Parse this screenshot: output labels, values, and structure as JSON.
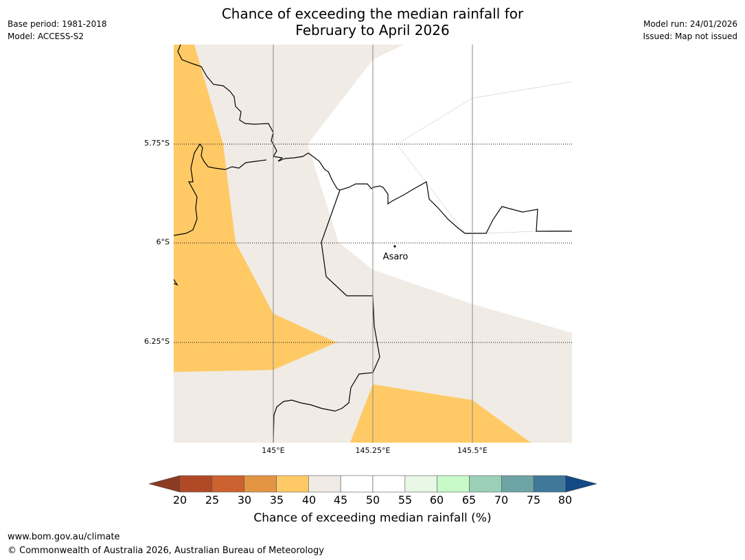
{
  "title": {
    "line1": "Chance of exceeding the median rainfall for",
    "line2": "February to April 2026"
  },
  "meta_left": {
    "base_period": "Base period: 1981-2018",
    "model": "Model: ACCESS-S2"
  },
  "meta_right": {
    "model_run": "Model run: 24/01/2026",
    "issued": "Issued: Map not issued"
  },
  "map": {
    "lat_labels": [
      "5.75°S",
      "6°S",
      "6.25°S"
    ],
    "lon_labels": [
      "145°E",
      "145.25°E",
      "145.5°E"
    ],
    "place": "Asaro",
    "colors": {
      "below_35_40": "#ffca66",
      "band_40_45": "#f0ebe5",
      "band_45_55": "#ffffff",
      "border": "#000000",
      "gridline": "#888888"
    }
  },
  "colorbar": {
    "ticks": [
      "20",
      "25",
      "30",
      "35",
      "40",
      "45",
      "50",
      "55",
      "60",
      "65",
      "70",
      "75",
      "80"
    ],
    "label": "Chance of exceeding median rainfall (%)",
    "low_extend_color": "#8c3a22",
    "high_extend_color": "#134b86",
    "colors": [
      "#b04a26",
      "#cc622f",
      "#e39544",
      "#ffca66",
      "#f0ebe5",
      "#ffffff",
      "#ffffff",
      "#e9f7e6",
      "#c8fac8",
      "#9bd0b8",
      "#6fa4a6",
      "#3f7899"
    ]
  },
  "footer": {
    "url": "www.bom.gov.au/climate",
    "copyright": "© Commonwealth of Australia 2026, Australian Bureau of Meteorology"
  }
}
